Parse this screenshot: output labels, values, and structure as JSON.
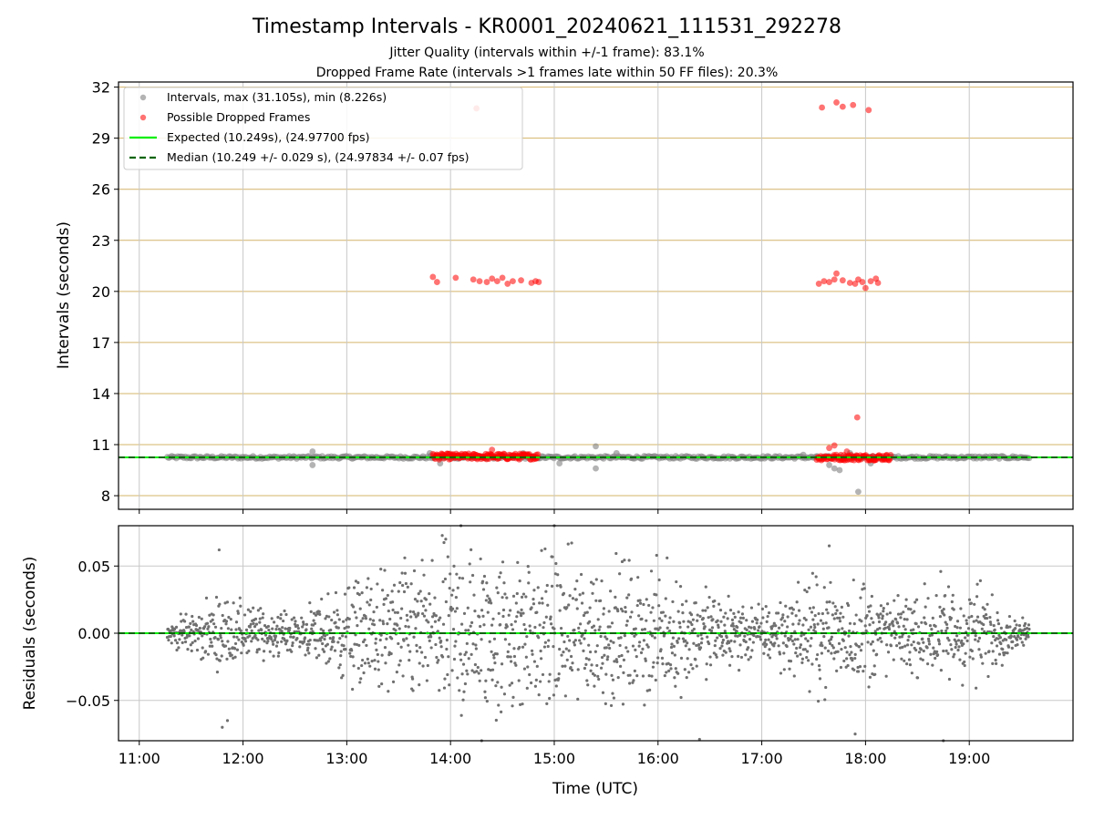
{
  "title": "Timestamp Intervals - KR0001_20240621_111531_292278",
  "subtitle_1": "Jitter Quality (intervals within +/-1 frame): 83.1%",
  "subtitle_2": "Dropped Frame Rate (intervals >1 frames late within 50 FF files): 20.3%",
  "colors": {
    "intervals": "#808080",
    "dropped": "#ff0000",
    "expected": "#00ee00",
    "median": "#006400",
    "hgrid_top": "#d4b46a",
    "grid": "#c8c8c8"
  },
  "chart_data": [
    {
      "type": "scatter",
      "panel": "top",
      "ylabel": "Intervals (seconds)",
      "ylim": [
        7.2,
        32.3
      ],
      "y_ticks": [
        "8",
        "11",
        "14",
        "17",
        "20",
        "23",
        "26",
        "29",
        "32"
      ],
      "y_tick_values": [
        8,
        11,
        14,
        17,
        20,
        23,
        26,
        29,
        32
      ],
      "x_ticks_visible": false,
      "grid": true,
      "legend_placement": "top-left",
      "expected_value": 10.249,
      "median_value": 10.249,
      "series": [
        {
          "name": "Intervals, max (31.105s), min (8.226s)",
          "marker": "circle",
          "color": "gray",
          "baseline_range_hours": [
            11.27,
            19.58
          ],
          "baseline_value": 10.25,
          "outliers": [
            [
              12.67,
              10.6
            ],
            [
              12.67,
              9.8
            ],
            [
              13.8,
              10.5
            ],
            [
              13.9,
              9.9
            ],
            [
              14.7,
              10.5
            ],
            [
              15.05,
              9.9
            ],
            [
              15.4,
              10.9
            ],
            [
              15.4,
              9.6
            ],
            [
              15.6,
              10.5
            ],
            [
              17.4,
              10.4
            ],
            [
              17.65,
              9.8
            ],
            [
              17.7,
              9.6
            ],
            [
              17.75,
              9.5
            ],
            [
              17.85,
              10.5
            ],
            [
              17.93,
              8.23
            ],
            [
              18.05,
              9.9
            ]
          ]
        },
        {
          "name": "Possible Dropped Frames",
          "marker": "circle",
          "color": "red",
          "clusters": [
            {
              "x_range": [
                13.83,
                14.85
              ],
              "y": 10.3
            },
            {
              "x_range": [
                17.53,
                18.25
              ],
              "y": 10.25
            }
          ],
          "points": [
            [
              14.25,
              30.75
            ],
            [
              17.58,
              30.8
            ],
            [
              17.72,
              31.1
            ],
            [
              17.78,
              30.85
            ],
            [
              17.88,
              30.95
            ],
            [
              18.03,
              30.65
            ],
            [
              13.83,
              20.85
            ],
            [
              13.87,
              20.55
            ],
            [
              14.05,
              20.8
            ],
            [
              14.22,
              20.7
            ],
            [
              14.28,
              20.6
            ],
            [
              14.35,
              20.55
            ],
            [
              14.4,
              20.75
            ],
            [
              14.45,
              20.6
            ],
            [
              14.5,
              20.8
            ],
            [
              14.55,
              20.45
            ],
            [
              14.6,
              20.6
            ],
            [
              14.68,
              20.65
            ],
            [
              14.78,
              20.5
            ],
            [
              14.82,
              20.6
            ],
            [
              14.85,
              20.55
            ],
            [
              17.55,
              20.45
            ],
            [
              17.6,
              20.6
            ],
            [
              17.65,
              20.55
            ],
            [
              17.7,
              20.7
            ],
            [
              17.72,
              21.05
            ],
            [
              17.78,
              20.65
            ],
            [
              17.85,
              20.5
            ],
            [
              17.9,
              20.45
            ],
            [
              17.93,
              20.7
            ],
            [
              17.97,
              20.55
            ],
            [
              18.0,
              20.2
            ],
            [
              18.05,
              20.6
            ],
            [
              18.1,
              20.75
            ],
            [
              18.12,
              20.5
            ],
            [
              17.92,
              12.6
            ],
            [
              17.7,
              10.95
            ],
            [
              17.65,
              10.8
            ],
            [
              17.82,
              10.6
            ],
            [
              14.4,
              10.7
            ]
          ]
        },
        {
          "name": "Expected (10.249s), (24.97700 fps)",
          "style": "solid-line",
          "color": "lime"
        },
        {
          "name": "Median (10.249 +/- 0.029 s), (24.97834 +/- 0.07 fps)",
          "style": "dashed-line",
          "color": "darkgreen"
        }
      ]
    },
    {
      "type": "scatter",
      "panel": "bottom",
      "xlabel": "Time (UTC)",
      "ylabel": "Residuals (seconds)",
      "xlim": [
        10.8,
        20.0
      ],
      "ylim": [
        -0.08,
        0.08
      ],
      "x_ticks": [
        "11:00",
        "12:00",
        "13:00",
        "14:00",
        "15:00",
        "16:00",
        "17:00",
        "18:00",
        "19:00"
      ],
      "x_tick_values": [
        11,
        12,
        13,
        14,
        15,
        16,
        17,
        18,
        19
      ],
      "y_ticks": [
        "−0.05",
        "0.00",
        "0.05"
      ],
      "y_tick_values": [
        -0.05,
        0.0,
        0.05
      ],
      "grid": true,
      "zero_line": 0.0,
      "residual_envelope": [
        [
          11.27,
          0.006
        ],
        [
          11.8,
          0.02
        ],
        [
          12.5,
          0.01
        ],
        [
          13.0,
          0.03
        ],
        [
          13.5,
          0.038
        ],
        [
          14.0,
          0.05
        ],
        [
          14.5,
          0.048
        ],
        [
          15.0,
          0.045
        ],
        [
          15.5,
          0.04
        ],
        [
          16.0,
          0.035
        ],
        [
          16.5,
          0.025
        ],
        [
          17.0,
          0.015
        ],
        [
          17.5,
          0.03
        ],
        [
          18.0,
          0.032
        ],
        [
          18.3,
          0.018
        ],
        [
          18.7,
          0.03
        ],
        [
          19.1,
          0.028
        ],
        [
          19.4,
          0.01
        ],
        [
          19.58,
          0.005
        ]
      ],
      "notable_points": [
        [
          11.77,
          0.062
        ],
        [
          11.8,
          -0.07
        ],
        [
          11.85,
          -0.065
        ],
        [
          14.1,
          0.08
        ],
        [
          14.3,
          -0.08
        ],
        [
          15.0,
          0.08
        ],
        [
          16.4,
          -0.079
        ],
        [
          17.65,
          0.065
        ],
        [
          17.9,
          -0.075
        ],
        [
          18.75,
          -0.08
        ]
      ]
    }
  ]
}
